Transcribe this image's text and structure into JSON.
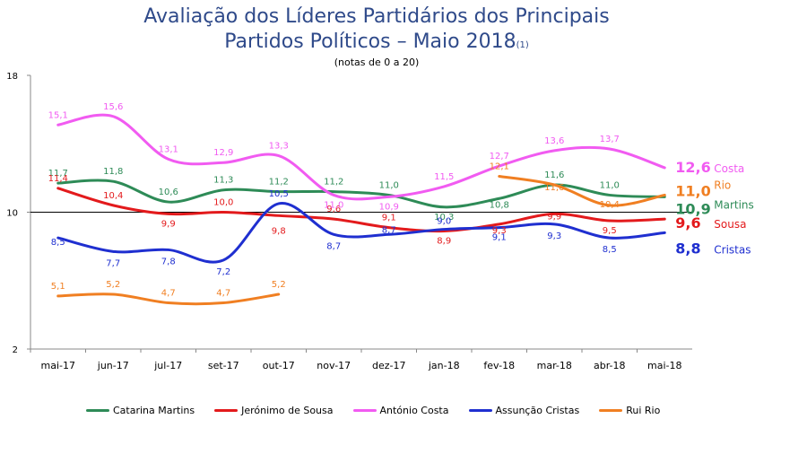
{
  "title_line1": "Avaliação dos Líderes Partidários dos Principais",
  "title_line2": "Partidos Políticos – Maio 2018",
  "title_note": "(1)",
  "subtitle": "(notas de 0 a 20)",
  "chart_data": {
    "type": "line",
    "categories": [
      "mai-17",
      "jun-17",
      "jul-17",
      "set-17",
      "out-17",
      "nov-17",
      "dez-17",
      "jan-18",
      "fev-18",
      "mar-18",
      "abr-18",
      "mai-18"
    ],
    "ylim": [
      2,
      18
    ],
    "yticks": [
      2,
      10,
      18
    ],
    "series": [
      {
        "name": "Catarina Martins",
        "short": "Martins",
        "color": "#2e8b57",
        "values": [
          11.7,
          11.8,
          10.6,
          11.3,
          11.2,
          11.2,
          11.0,
          10.3,
          10.8,
          11.6,
          11.0,
          10.9
        ],
        "labels": [
          "11,7",
          "11,8",
          "10,6",
          "11,3",
          "11,2",
          "11,2",
          "11,0",
          "10,3",
          "10,8",
          "11,6",
          "11,0",
          "10,9"
        ]
      },
      {
        "name": "Jerónimo de Sousa",
        "short": "Sousa",
        "color": "#e31a1c",
        "values": [
          11.4,
          10.4,
          9.9,
          10.0,
          9.8,
          9.6,
          9.1,
          8.9,
          9.3,
          9.9,
          9.5,
          9.6
        ],
        "labels": [
          "11,4",
          "10,4",
          "9,9",
          "10,0",
          "9,8",
          "9,6",
          "9,1",
          "8,9",
          "9,3",
          "9,9",
          "9,5",
          "9,6"
        ]
      },
      {
        "name": "António Costa",
        "short": "Costa",
        "color": "#f15bf1",
        "values": [
          15.1,
          15.6,
          13.1,
          12.9,
          13.3,
          11.0,
          10.9,
          11.5,
          12.7,
          13.6,
          13.7,
          12.6
        ],
        "labels": [
          "15,1",
          "15,6",
          "13,1",
          "12,9",
          "13,3",
          "11,0",
          "10,9",
          "11,5",
          "12,7",
          "13,6",
          "13,7",
          "12,6"
        ]
      },
      {
        "name": "Assunção Cristas",
        "short": "Cristas",
        "color": "#1f2fd0",
        "values": [
          8.5,
          7.7,
          7.8,
          7.2,
          10.5,
          8.7,
          8.7,
          9.0,
          9.1,
          9.3,
          8.5,
          8.8
        ],
        "labels": [
          "8,5",
          "7,7",
          "7,8",
          "7,2",
          "10,5",
          "8,7",
          "8,7",
          "9,0",
          "9,1",
          "9,3",
          "8,5",
          "8,8"
        ]
      },
      {
        "name": "Rui Rio",
        "short": "Rio",
        "color": "#f07f22",
        "values": [
          5.1,
          5.2,
          4.7,
          4.7,
          5.2,
          null,
          null,
          null,
          12.1,
          11.6,
          10.4,
          11.0
        ],
        "labels": [
          "5,1",
          "5,2",
          "4,7",
          "4,7",
          "5,2",
          "",
          "",
          "",
          "12,1",
          "11,6",
          "10,4",
          "11,0"
        ]
      }
    ]
  }
}
